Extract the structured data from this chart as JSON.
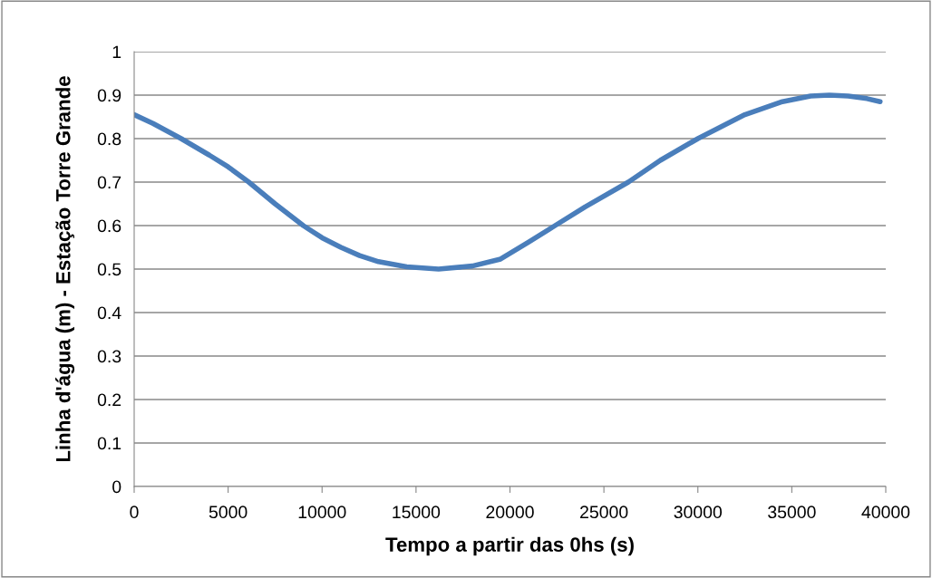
{
  "chart_data": {
    "type": "line",
    "xlabel": "Tempo a partir das 0hs (s)",
    "ylabel": "Linha d'água (m) - Estação Torre Grande",
    "x": [
      0,
      1000,
      2500,
      4000,
      5000,
      6100,
      7500,
      9000,
      10000,
      11000,
      12000,
      13000,
      14500,
      16200,
      18000,
      19500,
      21000,
      22400,
      24000,
      26300,
      28000,
      30000,
      32500,
      34500,
      36000,
      37000,
      38000,
      39000,
      39700
    ],
    "series": [
      {
        "color": "#4a7ebb",
        "values": [
          0.855,
          0.835,
          0.8,
          0.762,
          0.735,
          0.7,
          0.65,
          0.6,
          0.572,
          0.55,
          0.531,
          0.517,
          0.505,
          0.5,
          0.507,
          0.523,
          0.562,
          0.6,
          0.643,
          0.7,
          0.75,
          0.8,
          0.855,
          0.885,
          0.898,
          0.9,
          0.898,
          0.892,
          0.885
        ]
      }
    ],
    "xlim": [
      0,
      40000
    ],
    "xticks": [
      0,
      5000,
      10000,
      15000,
      20000,
      25000,
      30000,
      35000,
      40000
    ],
    "ylim": [
      0,
      1
    ],
    "yticks": [
      0,
      0.1,
      0.2,
      0.3,
      0.4,
      0.5,
      0.6,
      0.7,
      0.8,
      0.9,
      1
    ],
    "grid": "y",
    "marker": "none",
    "line_style": "solid",
    "legend": false
  }
}
